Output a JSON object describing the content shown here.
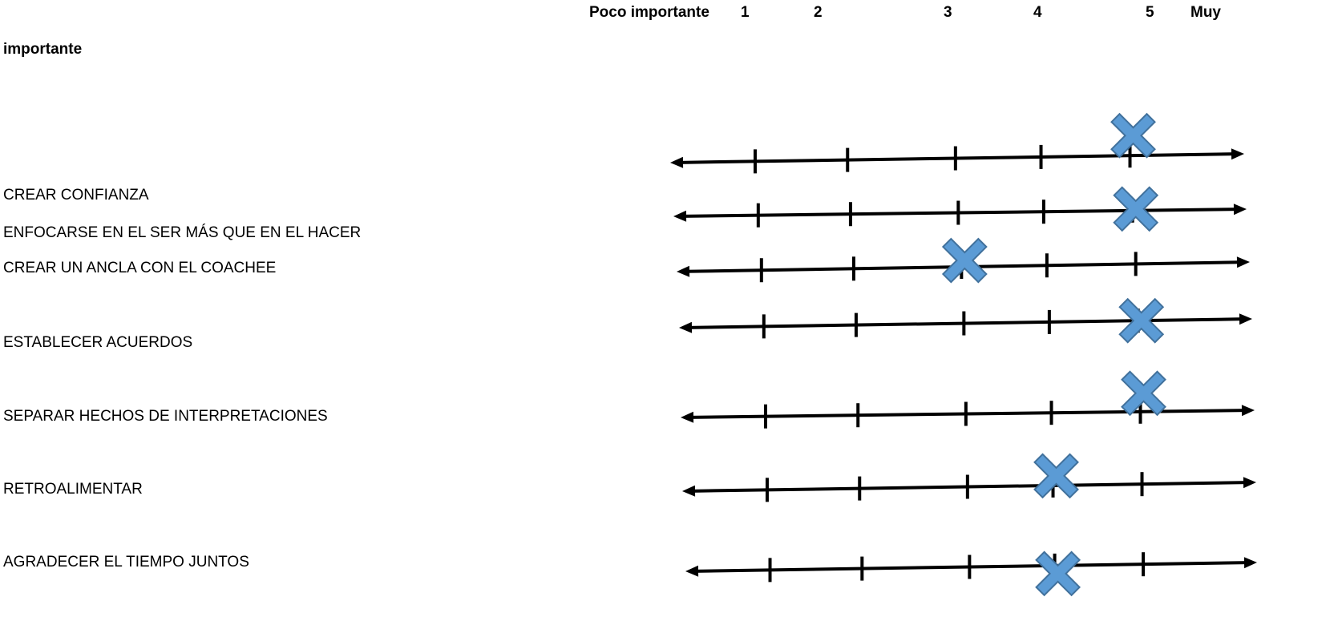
{
  "header": {
    "low_label": "Poco importante",
    "scale_numbers": [
      "1",
      "2",
      "3",
      "4",
      "5"
    ],
    "high_label_line1": "Muy",
    "high_label_line2": "importante"
  },
  "items": [
    {
      "label": "CREAR CONFIANZA",
      "rating": 5
    },
    {
      "label": "ENFOCARSE EN EL SER MÁS QUE EN EL HACER",
      "rating": 5
    },
    {
      "label": "CREAR UN ANCLA CON EL COACHEE",
      "rating": 3
    },
    {
      "label": "ESTABLECER ACUERDOS",
      "rating": 5
    },
    {
      "label": "SEPARAR HECHOS DE INTERPRETACIONES",
      "rating": 5
    },
    {
      "label": "RETROALIMENTAR",
      "rating": 4
    },
    {
      "label": "AGRADECER EL TIEMPO JUNTOS",
      "rating": 4
    }
  ],
  "colors": {
    "marker_fill": "#5B9BD5",
    "marker_stroke": "#41719C",
    "line": "#000000"
  },
  "marker_icon": "x-mark-icon"
}
